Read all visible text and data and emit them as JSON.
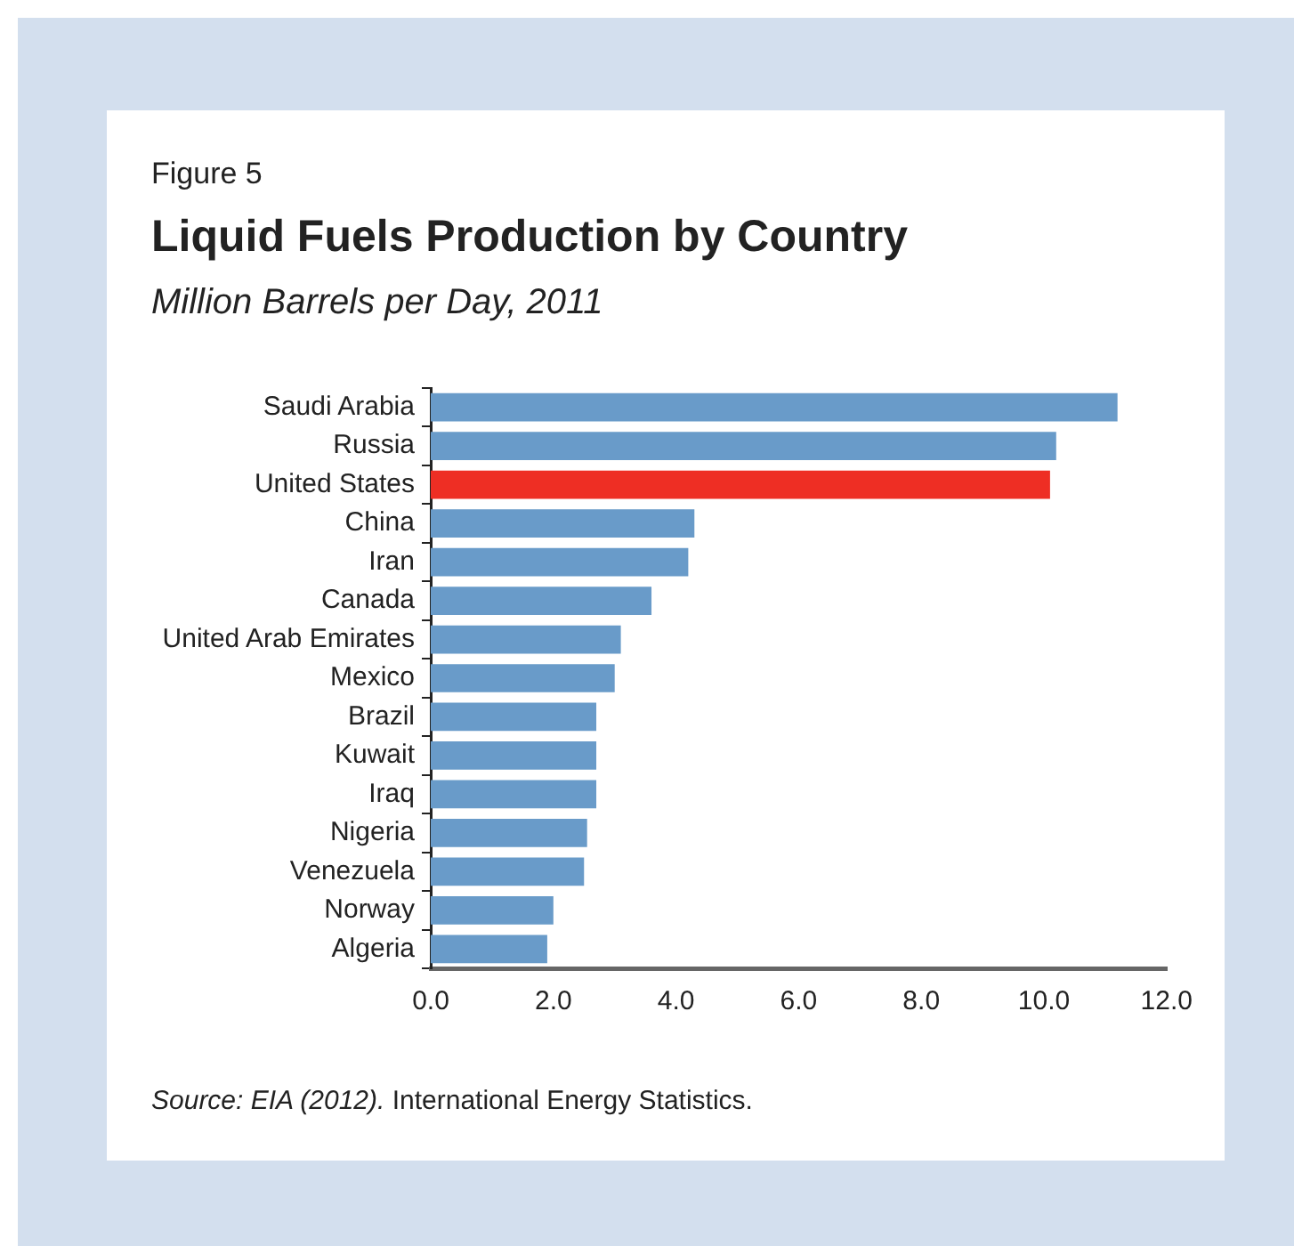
{
  "chart_data": {
    "type": "bar",
    "orientation": "horizontal",
    "title": "Liquid Fuels Production by Country",
    "subtitle": "Million Barrels per Day, 2011",
    "annotations": [
      "Figure 5",
      "Source: EIA (2012).",
      "International Energy Statistics."
    ],
    "categories": [
      "Saudi Arabia",
      "Russia",
      "United States",
      "China",
      "Iran",
      "Canada",
      "United Arab Emirates",
      "Mexico",
      "Brazil",
      "Kuwait",
      "Iraq",
      "Nigeria",
      "Venezuela",
      "Norway",
      "Algeria"
    ],
    "values": [
      11.2,
      10.2,
      10.1,
      4.3,
      4.2,
      3.6,
      3.1,
      3.0,
      2.7,
      2.7,
      2.7,
      2.55,
      2.5,
      2.0,
      1.9
    ],
    "colors": [
      "#699bc9",
      "#699bc9",
      "#ee2e24",
      "#699bc9",
      "#699bc9",
      "#699bc9",
      "#699bc9",
      "#699bc9",
      "#699bc9",
      "#699bc9",
      "#699bc9",
      "#699bc9",
      "#699bc9",
      "#699bc9",
      "#699bc9"
    ],
    "xlim": [
      0,
      12
    ],
    "xticks": [
      {
        "value": 0,
        "label": "0.0"
      },
      {
        "value": 2,
        "label": "2.0"
      },
      {
        "value": 4,
        "label": "4.0"
      },
      {
        "value": 6,
        "label": "6.0"
      },
      {
        "value": 8,
        "label": "8.0"
      },
      {
        "value": 10,
        "label": "10.0"
      },
      {
        "value": 12,
        "label": "12.0"
      }
    ],
    "legend": false
  }
}
